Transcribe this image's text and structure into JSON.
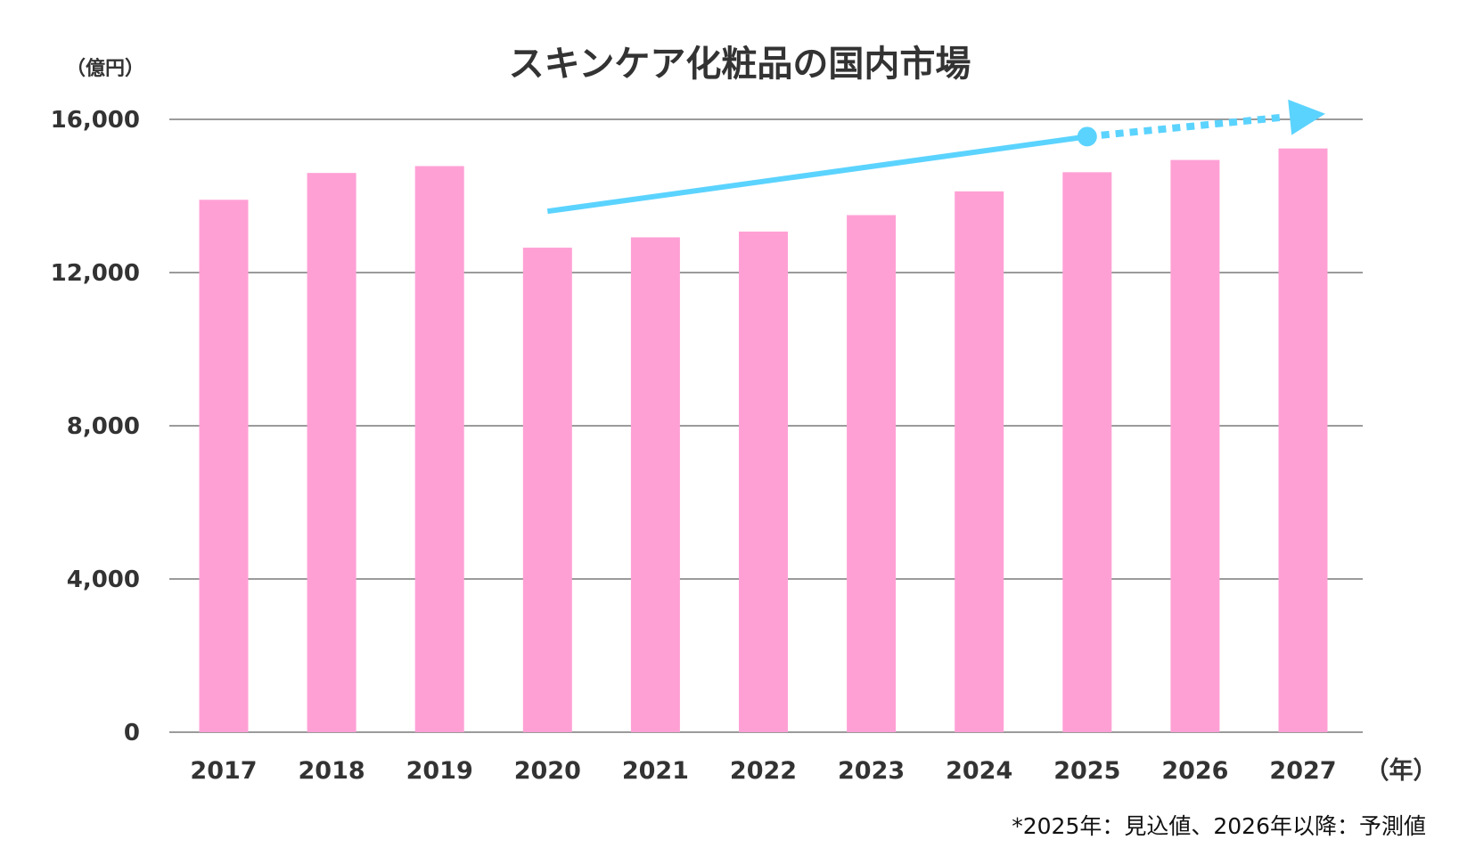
{
  "chart_data": {
    "type": "bar",
    "title": "スキンケア化粧品の国内市場",
    "ylabel": "（億円）",
    "xlabel": "（年）",
    "categories": [
      "2017",
      "2018",
      "2019",
      "2020",
      "2021",
      "2022",
      "2023",
      "2024",
      "2025",
      "2026",
      "2027"
    ],
    "values": [
      13900,
      14600,
      14780,
      12650,
      12920,
      13070,
      13500,
      14120,
      14620,
      14940,
      15240
    ],
    "ylim": [
      0,
      16000
    ],
    "yticks": [
      0,
      4000,
      8000,
      12000,
      16000
    ],
    "ytick_labels": [
      "0",
      "4,000",
      "8,000",
      "12,000",
      "16,000"
    ],
    "grid": true,
    "bar_color": "#ffa0d5",
    "trend_arrow": {
      "color": "#5bd3ff",
      "solid_from": {
        "x": "2020",
        "y": 13600
      },
      "solid_to": {
        "x": "2025",
        "y": 15550
      },
      "dotted_to": {
        "x": "2027",
        "y": 16100
      }
    },
    "footnote": "*2025年：見込値、2026年以降：予測値"
  }
}
